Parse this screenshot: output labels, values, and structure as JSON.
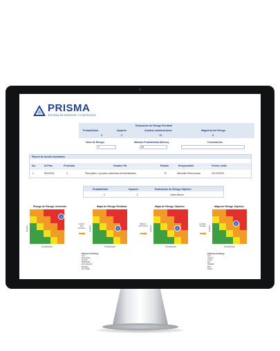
{
  "brand": {
    "name": "PRISMA",
    "tagline": "SISTEMA DE RIESGOS Y CONTROLES"
  },
  "summary": {
    "title": "Evaluación de Riesgo Residual",
    "headers": [
      "Probabilidad",
      "Impacto",
      "Análisis multifuncional",
      "Magnitud del Riesgo"
    ],
    "values": [
      "5",
      "5",
      "15",
      "8"
    ]
  },
  "params": {
    "labels": [
      "Nivel de Riesgo",
      "Máxima Probabilidad (Meses)",
      "Comentarios"
    ],
    "values": [
      "7",
      "15",
      ""
    ]
  },
  "plans": {
    "title": "Planes de acción asociados",
    "headers": [
      "No.",
      "Id Plan",
      "Prioridad",
      "Nombre PA",
      "Estado",
      "Responsable",
      "Fecha Límite"
    ],
    "rows": [
      [
        "1",
        "891/2011",
        "1",
        "Plan óptimo, 1 proceso, asesorías de entrenamiento",
        "R",
        "Mercedes Pérez Acosta",
        "31/12/2023"
      ]
    ]
  },
  "target": {
    "headers": [
      "Probabilidad",
      "Impacto",
      "Evaluación de Riesgo Objetivo"
    ],
    "values": [
      "1",
      "1",
      "Justo Bueno"
    ]
  },
  "matrices": [
    {
      "title": "Riesgo de Riesgo, Inherente",
      "marker": "1"
    },
    {
      "title": "Mapa de Riesgo Residual",
      "marker": "1"
    },
    {
      "title": "Mapa de Riesgo Objetivo",
      "marker": "1"
    },
    {
      "title": "Mapa de Riesgo Objetivo",
      "marker": "1"
    }
  ],
  "transitions": [
    "Control: 100 Controles",
    "Objetivo: 100 Control",
    "Lo Meta: Tomada"
  ],
  "axes": {
    "x": "Probabilidad",
    "y": "Impacto"
  },
  "legends": [
    {
      "header": "Situación de Riesgo",
      "items": [
        "Tipo",
        "Emergente",
        "Vigente",
        "Modificado",
        "Entre Espera",
        "Mitigado",
        "Por Vigilar"
      ]
    },
    {
      "header": "Situación de Riesgo",
      "items": [
        "Tipo",
        "Vigente",
        "Crítico",
        "Alto",
        "Mitigado",
        "Bajo",
        "Nuevo"
      ]
    }
  ],
  "colors": {
    "green": "#3f9e44",
    "yellow": "#f3e11e",
    "orange": "#f19a26",
    "red": "#e3302c",
    "brand": "#1f3f8f"
  }
}
